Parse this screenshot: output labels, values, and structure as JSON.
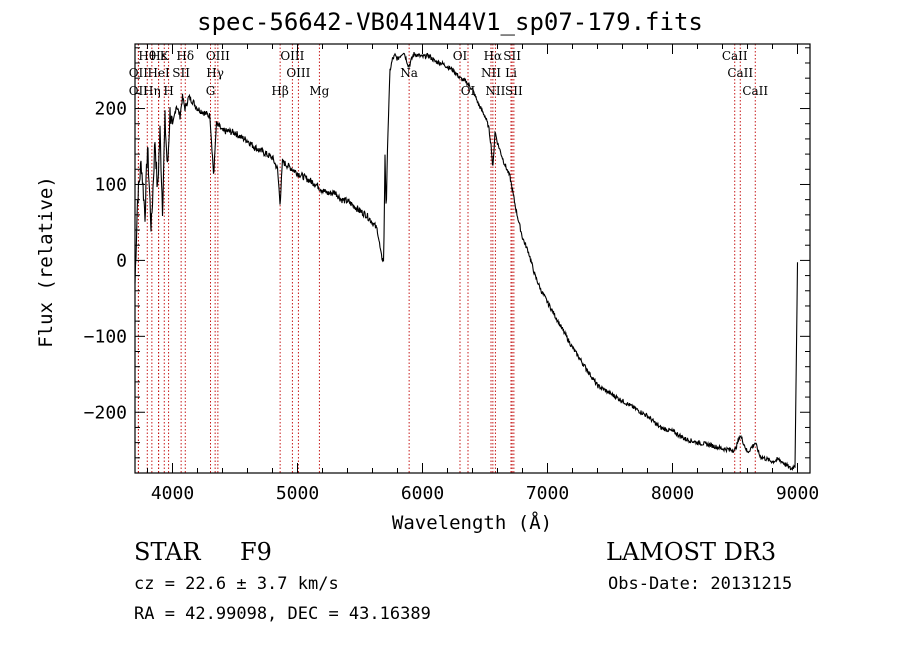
{
  "chart_data": {
    "type": "line",
    "title": "spec-56642-VB041N44V1_sp07-179.fits",
    "xlabel": "Wavelength (Å)",
    "ylabel": "Flux (relative)",
    "xlim": [
      3700,
      9100
    ],
    "ylim": [
      -280,
      285
    ],
    "xticks": [
      4000,
      5000,
      6000,
      7000,
      8000,
      9000
    ],
    "yticks": [
      -200,
      -100,
      0,
      100,
      200
    ],
    "xtick_labels": [
      "4000",
      "5000",
      "6000",
      "7000",
      "8000",
      "9000"
    ],
    "ytick_labels": [
      "−200",
      "−100",
      "0",
      "100",
      "200"
    ],
    "series": [
      {
        "name": "flux",
        "x": [
          3700,
          3720,
          3750,
          3780,
          3800,
          3830,
          3860,
          3880,
          3900,
          3920,
          3940,
          3960,
          3980,
          4000,
          4030,
          4060,
          4080,
          4100,
          4130,
          4160,
          4200,
          4250,
          4300,
          4330,
          4350,
          4380,
          4400,
          4450,
          4500,
          4550,
          4600,
          4650,
          4700,
          4750,
          4800,
          4840,
          4861,
          4880,
          4920,
          4960,
          5000,
          5050,
          5100,
          5150,
          5200,
          5250,
          5300,
          5350,
          5400,
          5450,
          5500,
          5550,
          5600,
          5640,
          5670,
          5690,
          5700,
          5710,
          5720,
          5740,
          5760,
          5780,
          5800,
          5850,
          5890,
          5930,
          6000,
          6050,
          6100,
          6150,
          6200,
          6250,
          6300,
          6350,
          6400,
          6450,
          6500,
          6530,
          6550,
          6563,
          6580,
          6600,
          6650,
          6700,
          6750,
          6800,
          6850,
          6900,
          6950,
          7000,
          7100,
          7200,
          7300,
          7400,
          7500,
          7600,
          7700,
          7800,
          7900,
          8000,
          8100,
          8200,
          8300,
          8400,
          8500,
          8542,
          8600,
          8662,
          8700,
          8800,
          8850,
          8900,
          8950,
          8980,
          9000
        ],
        "y": [
          -30,
          80,
          130,
          60,
          150,
          40,
          160,
          90,
          170,
          70,
          185,
          120,
          195,
          175,
          205,
          190,
          215,
          200,
          215,
          210,
          200,
          195,
          190,
          110,
          180,
          175,
          170,
          170,
          168,
          162,
          158,
          150,
          145,
          140,
          135,
          120,
          75,
          130,
          125,
          120,
          115,
          110,
          105,
          100,
          92,
          88,
          90,
          80,
          78,
          72,
          65,
          60,
          50,
          40,
          5,
          0,
          140,
          60,
          150,
          250,
          265,
          270,
          265,
          275,
          255,
          272,
          268,
          270,
          262,
          260,
          255,
          250,
          240,
          235,
          225,
          205,
          190,
          175,
          150,
          120,
          170,
          155,
          130,
          110,
          65,
          30,
          10,
          -20,
          -40,
          -55,
          -85,
          -115,
          -140,
          -165,
          -175,
          -185,
          -195,
          -205,
          -220,
          -225,
          -235,
          -240,
          -243,
          -248,
          -250,
          -230,
          -253,
          -240,
          -258,
          -265,
          -262,
          -268,
          -275,
          -270,
          -5
        ]
      }
    ],
    "line_markers": [
      {
        "label": "Hθ",
        "x": 3798,
        "row": 0
      },
      {
        "label": "Hε",
        "x": 3889,
        "row": 0
      },
      {
        "label": "K",
        "x": 3934,
        "row": 0
      },
      {
        "label": "Hδ",
        "x": 4102,
        "row": 0
      },
      {
        "label": "OIII",
        "x": 4363,
        "row": 0
      },
      {
        "label": "OIII",
        "x": 4959,
        "row": 0
      },
      {
        "label": "OI",
        "x": 6300,
        "row": 0
      },
      {
        "label": "Hα",
        "x": 6563,
        "row": 0
      },
      {
        "label": "SII",
        "x": 6717,
        "row": 0
      },
      {
        "label": "CaII",
        "x": 8498,
        "row": 0
      },
      {
        "label": "OII",
        "x": 3727,
        "row": 1
      },
      {
        "label": "HeI",
        "x": 3889,
        "row": 1
      },
      {
        "label": "SII",
        "x": 4069,
        "row": 1
      },
      {
        "label": "Hγ",
        "x": 4341,
        "row": 1
      },
      {
        "label": "OIII",
        "x": 5007,
        "row": 1
      },
      {
        "label": "Na",
        "x": 5893,
        "row": 1
      },
      {
        "label": "NII",
        "x": 6548,
        "row": 1
      },
      {
        "label": "Li",
        "x": 6708,
        "row": 1
      },
      {
        "label": "CaII",
        "x": 8542,
        "row": 1
      },
      {
        "label": "OII",
        "x": 3727,
        "row": 2
      },
      {
        "label": "Hη",
        "x": 3835,
        "row": 2
      },
      {
        "label": "H",
        "x": 3969,
        "row": 2
      },
      {
        "label": "G",
        "x": 4304,
        "row": 2
      },
      {
        "label": "Hβ",
        "x": 4861,
        "row": 2
      },
      {
        "label": "Mg",
        "x": 5175,
        "row": 2
      },
      {
        "label": "OI",
        "x": 6364,
        "row": 2
      },
      {
        "label": "NII",
        "x": 6583,
        "row": 2
      },
      {
        "label": "SII",
        "x": 6731,
        "row": 2
      },
      {
        "label": "CaII",
        "x": 8662,
        "row": 2
      }
    ],
    "colors": {
      "marker_line": "#c00000",
      "spectrum": "#000000",
      "axis": "#000000"
    }
  },
  "footer": {
    "class_label": "STAR",
    "subclass": "F9",
    "survey": "LAMOST DR3",
    "cz": "cz = 22.6 ± 3.7 km/s",
    "obs_date": "Obs-Date: 20131215",
    "coords": "RA =  42.99098, DEC =  43.16389"
  }
}
